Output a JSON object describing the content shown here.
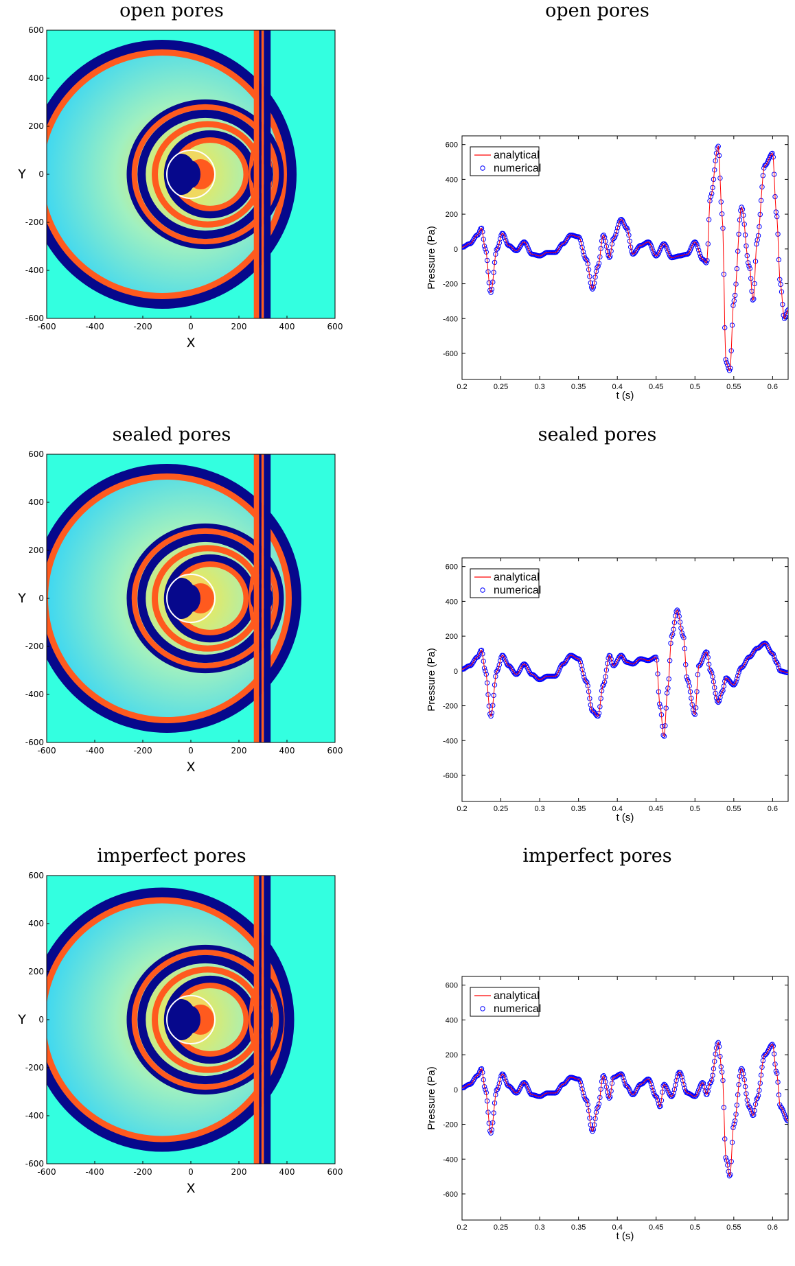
{
  "panels": [
    {
      "title_left": "open pores",
      "title_right": "open pores"
    },
    {
      "title_left": "sealed pores",
      "title_right": "sealed pores"
    },
    {
      "title_left": "imperfect pores",
      "title_right": "imperfect pores"
    }
  ],
  "field_axes": {
    "xlabel": "X",
    "ylabel": "Y",
    "xticks": [
      "-600",
      "-400",
      "-200",
      "0",
      "200",
      "400",
      "600"
    ],
    "yticks": [
      "600",
      "400",
      "200",
      "0",
      "-200",
      "-400",
      "-600"
    ]
  },
  "colors": {
    "analytical": "#ff0000",
    "numerical": "#0000ff",
    "background": "#33ffe0",
    "dark": "#06088c",
    "orange": "#ff5a1e"
  },
  "chart_data": [
    {
      "type": "line",
      "title": "open pores",
      "xlabel": "t (s)",
      "ylabel": "Pressure (Pa)",
      "xlim": [
        0.2,
        0.62
      ],
      "ylim": [
        -750,
        650
      ],
      "xticks": [
        "0.2",
        "0.25",
        "0.3",
        "0.35",
        "0.4",
        "0.45",
        "0.5",
        "0.55",
        "0.6"
      ],
      "yticks": [
        "600",
        "400",
        "200",
        "0",
        "-200",
        "-400",
        "-600"
      ],
      "legend": [
        "analytical",
        "numerical"
      ],
      "legend_position": "top-left",
      "series": [
        {
          "name": "analytical",
          "style": "red-line"
        },
        {
          "name": "numerical",
          "style": "blue-circles"
        }
      ],
      "x": [
        0.2,
        0.21,
        0.22,
        0.225,
        0.23,
        0.237,
        0.245,
        0.252,
        0.26,
        0.27,
        0.28,
        0.29,
        0.3,
        0.31,
        0.32,
        0.33,
        0.34,
        0.35,
        0.36,
        0.368,
        0.375,
        0.382,
        0.39,
        0.395,
        0.405,
        0.412,
        0.42,
        0.43,
        0.44,
        0.45,
        0.46,
        0.47,
        0.48,
        0.49,
        0.5,
        0.51,
        0.515,
        0.52,
        0.53,
        0.535,
        0.54,
        0.545,
        0.55,
        0.56,
        0.57,
        0.575,
        0.58,
        0.59,
        0.6,
        0.605,
        0.61,
        0.615,
        0.62
      ],
      "y": [
        10,
        30,
        80,
        120,
        0,
        -250,
        0,
        90,
        20,
        -10,
        40,
        -30,
        -40,
        -20,
        -20,
        30,
        80,
        70,
        -60,
        -230,
        -100,
        80,
        -50,
        60,
        170,
        120,
        -30,
        20,
        40,
        -40,
        30,
        -50,
        -40,
        -30,
        40,
        -60,
        -80,
        300,
        590,
        200,
        -650,
        -700,
        -300,
        240,
        -100,
        -300,
        50,
        480,
        550,
        200,
        -200,
        -400,
        -350
      ]
    },
    {
      "type": "line",
      "title": "sealed pores",
      "xlabel": "t (s)",
      "ylabel": "Pressure (Pa)",
      "xlim": [
        0.2,
        0.62
      ],
      "ylim": [
        -750,
        650
      ],
      "xticks": [
        "0.2",
        "0.25",
        "0.3",
        "0.35",
        "0.4",
        "0.45",
        "0.5",
        "0.55",
        "0.6"
      ],
      "yticks": [
        "600",
        "400",
        "200",
        "0",
        "-200",
        "-400",
        "-600"
      ],
      "legend": [
        "analytical",
        "numerical"
      ],
      "legend_position": "top-left",
      "series": [
        {
          "name": "analytical",
          "style": "red-line"
        },
        {
          "name": "numerical",
          "style": "blue-circles"
        }
      ],
      "x": [
        0.2,
        0.21,
        0.22,
        0.225,
        0.23,
        0.237,
        0.245,
        0.252,
        0.26,
        0.27,
        0.28,
        0.29,
        0.3,
        0.31,
        0.32,
        0.33,
        0.34,
        0.35,
        0.36,
        0.368,
        0.375,
        0.382,
        0.39,
        0.395,
        0.405,
        0.412,
        0.42,
        0.43,
        0.44,
        0.45,
        0.455,
        0.46,
        0.465,
        0.47,
        0.477,
        0.485,
        0.49,
        0.5,
        0.505,
        0.515,
        0.52,
        0.53,
        0.535,
        0.54,
        0.55,
        0.56,
        0.57,
        0.58,
        0.59,
        0.6,
        0.605,
        0.61,
        0.62
      ],
      "y": [
        10,
        30,
        80,
        120,
        0,
        -260,
        0,
        90,
        30,
        -20,
        40,
        -20,
        -50,
        -30,
        -30,
        40,
        90,
        70,
        -60,
        -230,
        -260,
        -80,
        90,
        30,
        90,
        50,
        40,
        70,
        60,
        80,
        -200,
        -380,
        -100,
        200,
        350,
        200,
        -50,
        -250,
        30,
        110,
        0,
        -180,
        -120,
        -40,
        -80,
        20,
        80,
        130,
        160,
        100,
        50,
        0,
        -10
      ]
    },
    {
      "type": "line",
      "title": "imperfect pores",
      "xlabel": "t (s)",
      "ylabel": "Pressure (Pa)",
      "xlim": [
        0.2,
        0.62
      ],
      "ylim": [
        -750,
        650
      ],
      "xticks": [
        "0.2",
        "0.25",
        "0.3",
        "0.35",
        "0.4",
        "0.45",
        "0.5",
        "0.55",
        "0.6"
      ],
      "yticks": [
        "600",
        "400",
        "200",
        "0",
        "-200",
        "-400",
        "-600"
      ],
      "legend": [
        "analytical",
        "numerical"
      ],
      "legend_position": "top-left",
      "series": [
        {
          "name": "analytical",
          "style": "red-line"
        },
        {
          "name": "numerical",
          "style": "blue-circles"
        }
      ],
      "x": [
        0.2,
        0.21,
        0.22,
        0.225,
        0.23,
        0.237,
        0.245,
        0.252,
        0.26,
        0.27,
        0.28,
        0.29,
        0.3,
        0.31,
        0.32,
        0.33,
        0.34,
        0.35,
        0.36,
        0.368,
        0.375,
        0.382,
        0.39,
        0.395,
        0.405,
        0.412,
        0.42,
        0.43,
        0.44,
        0.45,
        0.455,
        0.46,
        0.47,
        0.48,
        0.49,
        0.5,
        0.51,
        0.515,
        0.52,
        0.53,
        0.535,
        0.54,
        0.545,
        0.55,
        0.56,
        0.57,
        0.575,
        0.58,
        0.59,
        0.6,
        0.605,
        0.61,
        0.62
      ],
      "y": [
        10,
        30,
        80,
        120,
        0,
        -250,
        0,
        90,
        20,
        -20,
        40,
        -30,
        -40,
        -20,
        -20,
        30,
        70,
        60,
        -60,
        -240,
        -100,
        80,
        -50,
        70,
        90,
        20,
        -30,
        30,
        60,
        -40,
        -100,
        30,
        -40,
        100,
        -20,
        -40,
        40,
        -30,
        40,
        270,
        100,
        -400,
        -500,
        -200,
        120,
        -100,
        -150,
        -50,
        200,
        260,
        100,
        -100,
        -180
      ]
    }
  ]
}
